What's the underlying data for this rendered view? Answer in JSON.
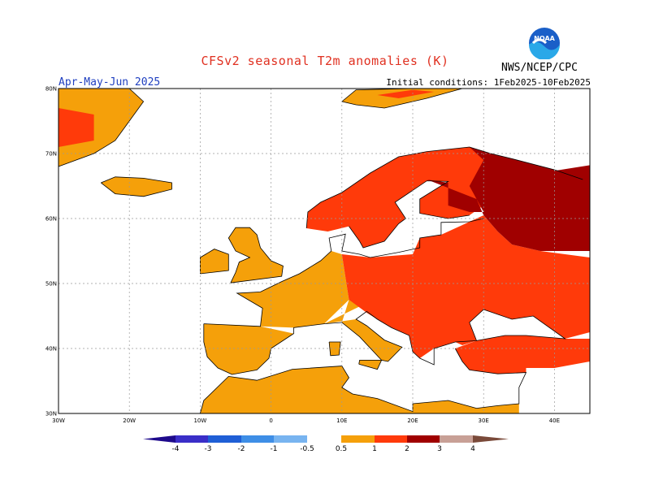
{
  "header": {
    "title": "CFSv2 seasonal T2m anomalies (K)",
    "period": "Apr-May-Jun 2025",
    "initial_conditions": "Initial conditions: 1Feb2025-10Feb2025",
    "agency": "NWS/NCEP/CPC",
    "logo_text": "NOAA"
  },
  "colors": {
    "title": "#e03020",
    "period": "#2040c0",
    "c_lt_neg4": "#1e0a8c",
    "c_neg4_neg3": "#3a2ec8",
    "c_neg3_neg2": "#1f5fd6",
    "c_neg2_neg1": "#3e8ee6",
    "c_neg1_neg05": "#78b4f0",
    "c_neutral": "#ffffff",
    "c_05_1": "#f5a00a",
    "c_1_2": "#ff3a0a",
    "c_2_3": "#a00000",
    "c_3_4": "#c8a096",
    "c_gt_4": "#7a4a3a"
  },
  "map": {
    "lon_ticks": [
      "30W",
      "20W",
      "10W",
      "0",
      "10E",
      "20E",
      "30E",
      "40E"
    ],
    "lat_ticks": [
      "30N",
      "40N",
      "50N",
      "60N",
      "70N",
      "80N"
    ],
    "lon_range": [
      -30,
      45
    ],
    "lat_range": [
      30,
      80
    ]
  },
  "colorbar": {
    "labels": [
      "-4",
      "-3",
      "-2",
      "-1",
      "-0.5",
      "0.5",
      "1",
      "2",
      "3",
      "4"
    ]
  }
}
